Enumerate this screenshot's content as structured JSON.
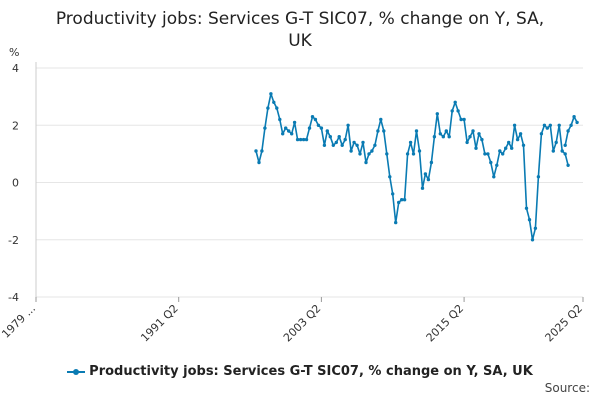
{
  "chart_data": {
    "type": "line",
    "title_lines": [
      "Productivity jobs: Services G-T SIC07, % change on Y, SA,",
      "UK"
    ],
    "ylabel": "%",
    "ylim": [
      -4,
      4
    ],
    "yticks": [
      4,
      2,
      0,
      -2,
      -4
    ],
    "xlim": [
      1979.25,
      2025.25
    ],
    "xticks": [
      {
        "label": "1979 ...",
        "x": 1979.25
      },
      {
        "label": "1991 Q2",
        "x": 1991.25
      },
      {
        "label": "2003 Q2",
        "x": 2003.25
      },
      {
        "label": "2015 Q2",
        "x": 2015.25
      },
      {
        "label": "2025 Q2",
        "x": 2025.25
      }
    ],
    "color": "#0a7bb3",
    "grid": true,
    "legend_position": "bottom",
    "series": [
      {
        "name": "Productivity jobs: Services G-T SIC07, % change on Y, SA, UK",
        "segments": [
          {
            "start": 1997.75,
            "values": [
              1.1,
              0.7,
              1.1,
              1.9,
              2.6,
              3.1,
              2.8,
              2.6,
              2.2,
              1.7,
              1.9,
              1.8,
              1.7,
              2.1,
              1.5,
              1.5,
              1.5,
              1.5,
              1.9,
              2.3,
              2.2,
              2.0,
              1.9,
              1.3,
              1.8,
              1.6,
              1.3,
              1.4,
              1.6,
              1.3,
              1.5,
              2.0,
              1.1,
              1.4,
              1.3,
              1.0,
              1.4,
              0.7,
              1.0,
              1.1,
              1.3,
              1.8,
              2.2,
              1.8,
              1.0,
              0.2,
              -0.4,
              -1.4,
              -0.7,
              -0.6,
              -0.6,
              1.0,
              1.4,
              1.0,
              1.8,
              1.1,
              -0.2,
              0.3,
              0.1,
              0.7,
              1.6,
              2.4,
              1.7,
              1.6,
              1.8,
              1.6,
              2.5,
              2.8,
              2.5,
              2.2,
              2.2,
              1.4,
              1.6,
              1.8,
              1.2,
              1.7,
              1.5,
              1.0,
              1.0,
              0.7,
              0.2,
              0.6,
              1.1,
              1.0,
              1.2,
              1.4,
              1.2,
              2.0,
              1.5,
              1.7,
              1.3,
              -0.9,
              -1.3,
              -2.0,
              -1.6,
              0.2,
              1.7,
              2.0,
              1.9,
              2.0,
              1.1,
              1.4,
              2.0,
              1.1,
              1.0,
              0.6
            ]
          },
          {
            "start": 2023.75,
            "values": [
              1.3,
              1.8,
              2.0,
              2.3,
              2.1
            ]
          }
        ]
      }
    ],
    "source_label": "Source:"
  }
}
